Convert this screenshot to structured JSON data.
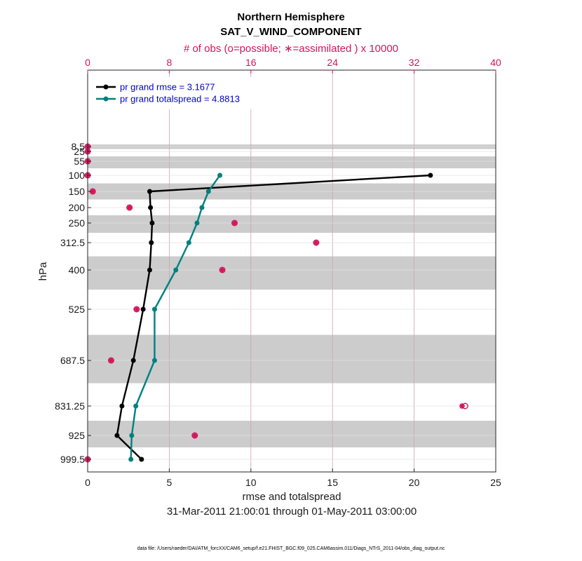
{
  "chart_data": {
    "type": "line",
    "title": "Northern Hemisphere",
    "subtitle": "SAT_V_WIND_COMPONENT",
    "top_axis_label": "# of obs (o=possible; ∗=assimilated ) x 10000",
    "xlabel": "rmse and totalspread",
    "ylabel": "hPa",
    "date_range": "31-Mar-2011 21:00:01 through 01-May-2011 03:00:00",
    "footnote": "data file: /Users/raeder/DAI/ATM_forcXX/CAM6_setup/f.e21.FHIST_BGC.f09_025.CAM6assim.011/Diags_NTrS_2011-04/obs_diag_output.nc",
    "xlim": [
      0,
      25
    ],
    "x_ticks": [
      0,
      5,
      10,
      15,
      20,
      25
    ],
    "top_xlim": [
      0,
      40
    ],
    "top_ticks": [
      0,
      8,
      16,
      24,
      32,
      40
    ],
    "levels": [
      8.5,
      25,
      55,
      100,
      150,
      200,
      250,
      312.5,
      400,
      525,
      687.5,
      831.25,
      925,
      999.5
    ],
    "level_labels": [
      "8.5",
      "25",
      "55",
      "100",
      "150",
      "200",
      "250",
      "312.5",
      "400",
      "525",
      "687.5",
      "831.25",
      "925",
      "999.5"
    ],
    "series": [
      {
        "name": "rmse",
        "legend": "pr grand rmse = 3.1677",
        "color": "#000000",
        "levels": [
          100,
          150,
          200,
          250,
          312.5,
          400,
          525,
          687.5,
          831.25,
          925,
          999.5
        ],
        "values": [
          21.0,
          3.8,
          3.85,
          3.95,
          3.9,
          3.8,
          3.4,
          2.8,
          2.1,
          1.8,
          3.3
        ]
      },
      {
        "name": "totalspread",
        "legend": "pr grand totalspread = 4.8813",
        "color": "#008080",
        "levels": [
          100,
          150,
          200,
          250,
          312.5,
          400,
          525,
          687.5,
          831.25,
          925,
          999.5
        ],
        "values": [
          8.1,
          7.4,
          7.0,
          6.7,
          6.2,
          5.4,
          4.1,
          4.1,
          2.95,
          2.7,
          2.65
        ]
      }
    ],
    "obs_count": {
      "color": "#d4145a",
      "levels": [
        8.5,
        25,
        55,
        100,
        150,
        200,
        250,
        312.5,
        400,
        525,
        687.5,
        831.25,
        925,
        999.5
      ],
      "possible": [
        0,
        0,
        0,
        0,
        0.5,
        4.1,
        14.4,
        22.4,
        13.2,
        4.8,
        2.3,
        37.0,
        10.5,
        0
      ],
      "assimilated": [
        0,
        0,
        0,
        0,
        0.5,
        4.1,
        14.4,
        22.4,
        13.2,
        4.8,
        2.3,
        36.7,
        10.5,
        0
      ]
    }
  }
}
